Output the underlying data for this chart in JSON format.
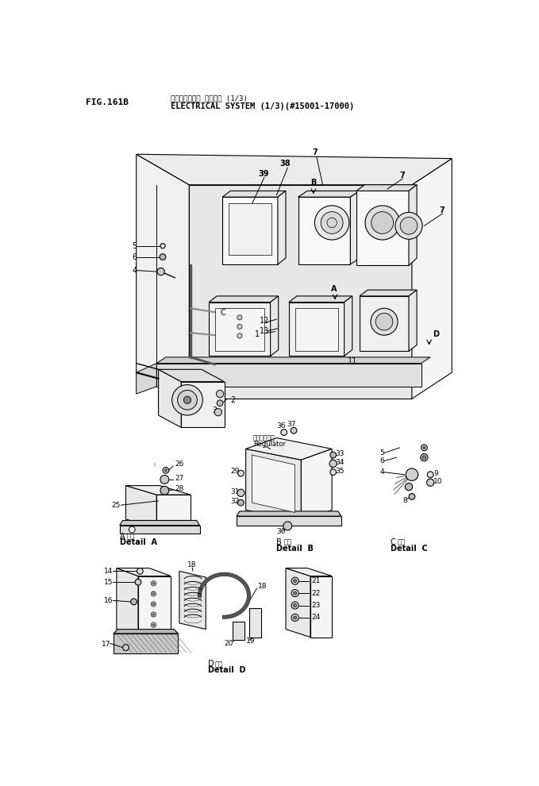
{
  "title_jp": "エレクトリカル システム (1/3)",
  "title_en": "ELECTRICAL SYSTEM (1/3)(#15001-17000)",
  "fig_label": "FIG.161B",
  "bg_color": "#ffffff",
  "line_color": "#000000",
  "fig_width": 6.79,
  "fig_height": 9.9,
  "dpi": 100
}
